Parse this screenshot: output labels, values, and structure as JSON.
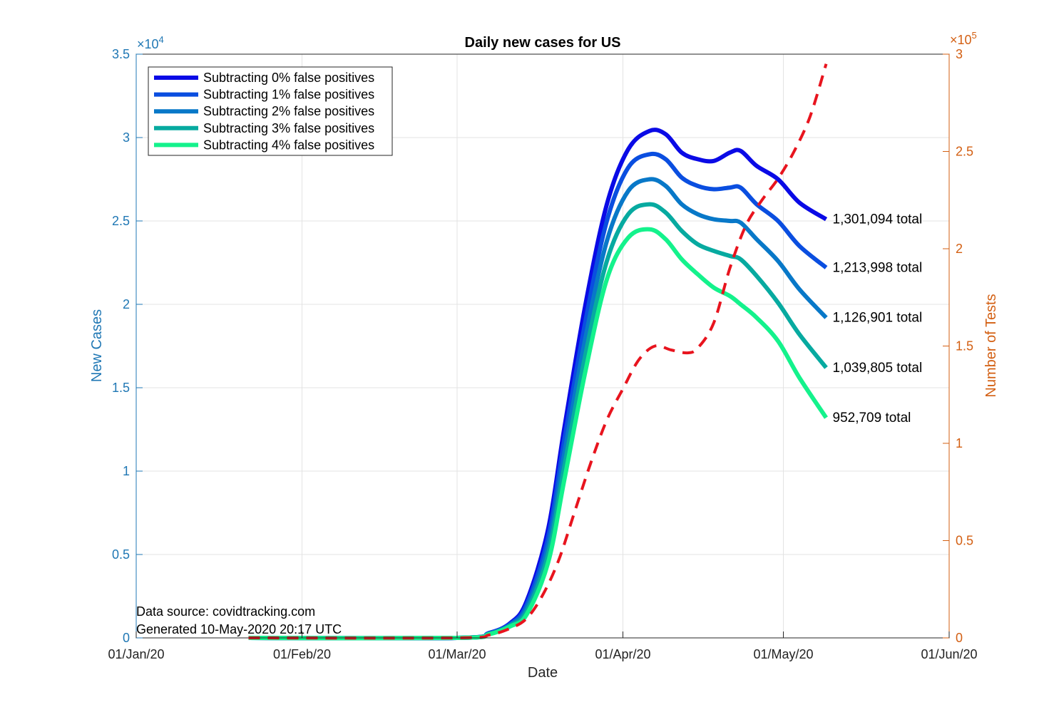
{
  "chart_data": {
    "type": "line",
    "title": "Daily new cases for US",
    "xlabel": "Date",
    "ylabel_left": "New Cases",
    "ylabel_right": "Number of Tests",
    "left_multiplier": "×10",
    "left_exponent": "4",
    "right_multiplier": "×10",
    "right_exponent": "5",
    "xlim": [
      "2020-01-01",
      "2020-06-01"
    ],
    "ylim_left": [
      0,
      35000
    ],
    "ylim_right": [
      0,
      300000
    ],
    "x_ticks": [
      {
        "date": "2020-01-01",
        "label": "01/Jan/20"
      },
      {
        "date": "2020-02-01",
        "label": "01/Feb/20"
      },
      {
        "date": "2020-03-01",
        "label": "01/Mar/20"
      },
      {
        "date": "2020-04-01",
        "label": "01/Apr/20"
      },
      {
        "date": "2020-05-01",
        "label": "01/May/20"
      },
      {
        "date": "2020-06-01",
        "label": "01/Jun/20"
      }
    ],
    "y_ticks_left": [
      {
        "value": 0,
        "label": "0"
      },
      {
        "value": 5000,
        "label": "0.5"
      },
      {
        "value": 10000,
        "label": "1"
      },
      {
        "value": 15000,
        "label": "1.5"
      },
      {
        "value": 20000,
        "label": "2"
      },
      {
        "value": 25000,
        "label": "2.5"
      },
      {
        "value": 30000,
        "label": "3"
      },
      {
        "value": 35000,
        "label": "3.5"
      }
    ],
    "y_ticks_right": [
      {
        "value": 0,
        "label": "0"
      },
      {
        "value": 50000,
        "label": "0.5"
      },
      {
        "value": 100000,
        "label": "1"
      },
      {
        "value": 150000,
        "label": "1.5"
      },
      {
        "value": 200000,
        "label": "2"
      },
      {
        "value": 250000,
        "label": "2.5"
      },
      {
        "value": 300000,
        "label": "3"
      }
    ],
    "grid": true,
    "legend_position": "top-left",
    "series": [
      {
        "name": "Subtracting 0% false positives",
        "color": "#0a0ae6",
        "end_label": "1,301,094 total",
        "points": [
          [
            "2020-01-22",
            0
          ],
          [
            "2020-03-01",
            0
          ],
          [
            "2020-03-07",
            300
          ],
          [
            "2020-03-11",
            900
          ],
          [
            "2020-03-14",
            2200
          ],
          [
            "2020-03-18",
            6500
          ],
          [
            "2020-03-21",
            12500
          ],
          [
            "2020-03-25",
            20000
          ],
          [
            "2020-03-29",
            26000
          ],
          [
            "2020-04-02",
            29300
          ],
          [
            "2020-04-06",
            30400
          ],
          [
            "2020-04-09",
            30200
          ],
          [
            "2020-04-12",
            29100
          ],
          [
            "2020-04-15",
            28700
          ],
          [
            "2020-04-18",
            28600
          ],
          [
            "2020-04-21",
            29100
          ],
          [
            "2020-04-23",
            29200
          ],
          [
            "2020-04-26",
            28300
          ],
          [
            "2020-04-30",
            27500
          ],
          [
            "2020-05-04",
            26100
          ],
          [
            "2020-05-09",
            25100
          ]
        ]
      },
      {
        "name": "Subtracting 1% false positives",
        "color": "#0a4ee0",
        "end_label": "1,213,998 total",
        "points": [
          [
            "2020-01-22",
            0
          ],
          [
            "2020-03-01",
            0
          ],
          [
            "2020-03-07",
            280
          ],
          [
            "2020-03-11",
            850
          ],
          [
            "2020-03-14",
            2000
          ],
          [
            "2020-03-18",
            6000
          ],
          [
            "2020-03-21",
            11800
          ],
          [
            "2020-03-25",
            19000
          ],
          [
            "2020-03-29",
            25000
          ],
          [
            "2020-04-02",
            28200
          ],
          [
            "2020-04-06",
            29000
          ],
          [
            "2020-04-09",
            28700
          ],
          [
            "2020-04-12",
            27600
          ],
          [
            "2020-04-15",
            27100
          ],
          [
            "2020-04-18",
            26900
          ],
          [
            "2020-04-21",
            27000
          ],
          [
            "2020-04-23",
            27000
          ],
          [
            "2020-04-26",
            26000
          ],
          [
            "2020-04-30",
            25000
          ],
          [
            "2020-05-04",
            23500
          ],
          [
            "2020-05-09",
            22200
          ]
        ]
      },
      {
        "name": "Subtracting 2% false positives",
        "color": "#0878c8",
        "end_label": "1,126,901 total",
        "points": [
          [
            "2020-01-22",
            0
          ],
          [
            "2020-03-01",
            0
          ],
          [
            "2020-03-07",
            260
          ],
          [
            "2020-03-11",
            800
          ],
          [
            "2020-03-14",
            1800
          ],
          [
            "2020-03-18",
            5500
          ],
          [
            "2020-03-21",
            11000
          ],
          [
            "2020-03-25",
            18000
          ],
          [
            "2020-03-29",
            23800
          ],
          [
            "2020-04-02",
            26800
          ],
          [
            "2020-04-06",
            27500
          ],
          [
            "2020-04-09",
            27100
          ],
          [
            "2020-04-12",
            26000
          ],
          [
            "2020-04-15",
            25400
          ],
          [
            "2020-04-18",
            25100
          ],
          [
            "2020-04-21",
            25000
          ],
          [
            "2020-04-23",
            24900
          ],
          [
            "2020-04-26",
            23900
          ],
          [
            "2020-04-30",
            22600
          ],
          [
            "2020-05-04",
            20900
          ],
          [
            "2020-05-09",
            19200
          ]
        ]
      },
      {
        "name": "Subtracting 3% false positives",
        "color": "#07aaa0",
        "end_label": "1,039,805 total",
        "points": [
          [
            "2020-01-22",
            0
          ],
          [
            "2020-03-01",
            0
          ],
          [
            "2020-03-07",
            240
          ],
          [
            "2020-03-11",
            750
          ],
          [
            "2020-03-14",
            1600
          ],
          [
            "2020-03-18",
            5000
          ],
          [
            "2020-03-21",
            10200
          ],
          [
            "2020-03-25",
            17000
          ],
          [
            "2020-03-29",
            22600
          ],
          [
            "2020-04-02",
            25400
          ],
          [
            "2020-04-06",
            26000
          ],
          [
            "2020-04-09",
            25500
          ],
          [
            "2020-04-12",
            24400
          ],
          [
            "2020-04-15",
            23600
          ],
          [
            "2020-04-18",
            23200
          ],
          [
            "2020-04-21",
            22900
          ],
          [
            "2020-04-23",
            22700
          ],
          [
            "2020-04-26",
            21700
          ],
          [
            "2020-04-30",
            20100
          ],
          [
            "2020-05-04",
            18200
          ],
          [
            "2020-05-09",
            16200
          ]
        ]
      },
      {
        "name": "Subtracting 4% false positives",
        "color": "#14f28c",
        "end_label": "952,709 total",
        "points": [
          [
            "2020-01-22",
            0
          ],
          [
            "2020-03-01",
            0
          ],
          [
            "2020-03-07",
            220
          ],
          [
            "2020-03-11",
            700
          ],
          [
            "2020-03-14",
            1400
          ],
          [
            "2020-03-18",
            4500
          ],
          [
            "2020-03-21",
            9400
          ],
          [
            "2020-03-25",
            16000
          ],
          [
            "2020-03-29",
            21500
          ],
          [
            "2020-04-02",
            24000
          ],
          [
            "2020-04-06",
            24500
          ],
          [
            "2020-04-09",
            23900
          ],
          [
            "2020-04-12",
            22700
          ],
          [
            "2020-04-15",
            21800
          ],
          [
            "2020-04-18",
            21000
          ],
          [
            "2020-04-21",
            20500
          ],
          [
            "2020-04-23",
            20000
          ],
          [
            "2020-04-26",
            19200
          ],
          [
            "2020-04-30",
            17800
          ],
          [
            "2020-05-04",
            15600
          ],
          [
            "2020-05-09",
            13200
          ]
        ]
      }
    ],
    "tests_series": {
      "color": "#e8141e",
      "style": "dashed",
      "axis": "right",
      "points": [
        [
          "2020-01-22",
          0
        ],
        [
          "2020-03-01",
          0
        ],
        [
          "2020-03-07",
          1500
        ],
        [
          "2020-03-11",
          5000
        ],
        [
          "2020-03-14",
          10000
        ],
        [
          "2020-03-17",
          22000
        ],
        [
          "2020-03-20",
          40000
        ],
        [
          "2020-03-23",
          65000
        ],
        [
          "2020-03-26",
          90000
        ],
        [
          "2020-03-29",
          112000
        ],
        [
          "2020-04-01",
          128000
        ],
        [
          "2020-04-04",
          143000
        ],
        [
          "2020-04-07",
          150000
        ],
        [
          "2020-04-10",
          148000
        ],
        [
          "2020-04-13",
          146500
        ],
        [
          "2020-04-15",
          149000
        ],
        [
          "2020-04-18",
          162000
        ],
        [
          "2020-04-21",
          190000
        ],
        [
          "2020-04-24",
          212000
        ],
        [
          "2020-04-27",
          225000
        ],
        [
          "2020-04-30",
          236000
        ],
        [
          "2020-05-03",
          250000
        ],
        [
          "2020-05-06",
          268000
        ],
        [
          "2020-05-09",
          295000
        ]
      ]
    },
    "annotations": [
      "Data source: covidtracking.com",
      "Generated 10-May-2020 20:17 UTC"
    ]
  }
}
